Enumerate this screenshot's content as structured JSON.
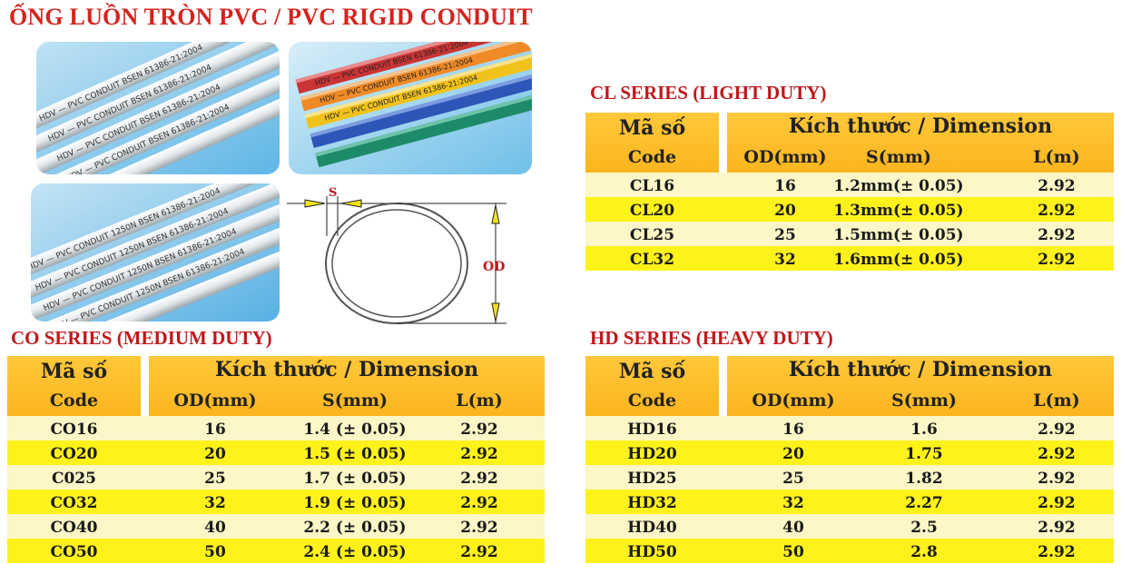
{
  "page_title": "ỐNG LUỒN TRÒN PVC / PVC RIGID CONDUIT",
  "photos": {
    "printed_text_1": "HDV — PVC CONDUIT BSEN 61386-21:2004",
    "printed_text_2": "HDV — PVC CONDUIT 1250N BSEN 61386-21:2004"
  },
  "diagram": {
    "s_label": "S",
    "od_label": "OD"
  },
  "cl": {
    "title": "CL SERIES (LIGHT DUTY)",
    "h_ma": "Mã số",
    "h_code": "Code",
    "h_dim": "Kích thước / Dimension",
    "h_od": "OD(mm)",
    "h_s": "S(mm)",
    "h_l": "L(m)",
    "rows": [
      {
        "code": "CL16",
        "od": "16",
        "s": "1.2mm(± 0.05)",
        "l": "2.92"
      },
      {
        "code": "CL20",
        "od": "20",
        "s": "1.3mm(± 0.05)",
        "l": "2.92"
      },
      {
        "code": "CL25",
        "od": "25",
        "s": "1.5mm(± 0.05)",
        "l": "2.92"
      },
      {
        "code": "CL32",
        "od": "32",
        "s": "1.6mm(± 0.05)",
        "l": "2.92"
      }
    ]
  },
  "co": {
    "title": "CO SERIES (MEDIUM DUTY)",
    "h_ma": "Mã số",
    "h_code": "Code",
    "h_dim": "Kích thước / Dimension",
    "h_od": "OD(mm)",
    "h_s": "S(mm)",
    "h_l": "L(m)",
    "rows": [
      {
        "code": "CO16",
        "od": "16",
        "s": "1.4 (± 0.05)",
        "l": "2.92"
      },
      {
        "code": "CO20",
        "od": "20",
        "s": "1.5 (± 0.05)",
        "l": "2.92"
      },
      {
        "code": "C025",
        "od": "25",
        "s": "1.7 (± 0.05)",
        "l": "2.92"
      },
      {
        "code": "CO32",
        "od": "32",
        "s": "1.9 (± 0.05)",
        "l": "2.92"
      },
      {
        "code": "CO40",
        "od": "40",
        "s": "2.2 (± 0.05)",
        "l": "2.92"
      },
      {
        "code": "CO50",
        "od": "50",
        "s": "2.4 (± 0.05)",
        "l": "2.92"
      }
    ]
  },
  "hd": {
    "title": "HD SERIES (HEAVY DUTY)",
    "h_ma": "Mã số",
    "h_code": "Code",
    "h_dim": "Kích thước / Dimension",
    "h_od": "OD(mm)",
    "h_s": "S(mm)",
    "h_l": "L(m)",
    "rows": [
      {
        "code": "HD16",
        "od": "16",
        "s": "1.6",
        "l": "2.92"
      },
      {
        "code": "HD20",
        "od": "20",
        "s": "1.75",
        "l": "2.92"
      },
      {
        "code": "HD25",
        "od": "25",
        "s": "1.82",
        "l": "2.92"
      },
      {
        "code": "HD32",
        "od": "32",
        "s": "2.27",
        "l": "2.92"
      },
      {
        "code": "HD40",
        "od": "40",
        "s": "2.5",
        "l": "2.92"
      },
      {
        "code": "HD50",
        "od": "50",
        "s": "2.8",
        "l": "2.92"
      }
    ]
  },
  "colors": {
    "title_red": "#d6231e",
    "header_orange": "#fbb51e",
    "row_light": "#fdf6c6",
    "row_yellow": "#fff21a"
  }
}
